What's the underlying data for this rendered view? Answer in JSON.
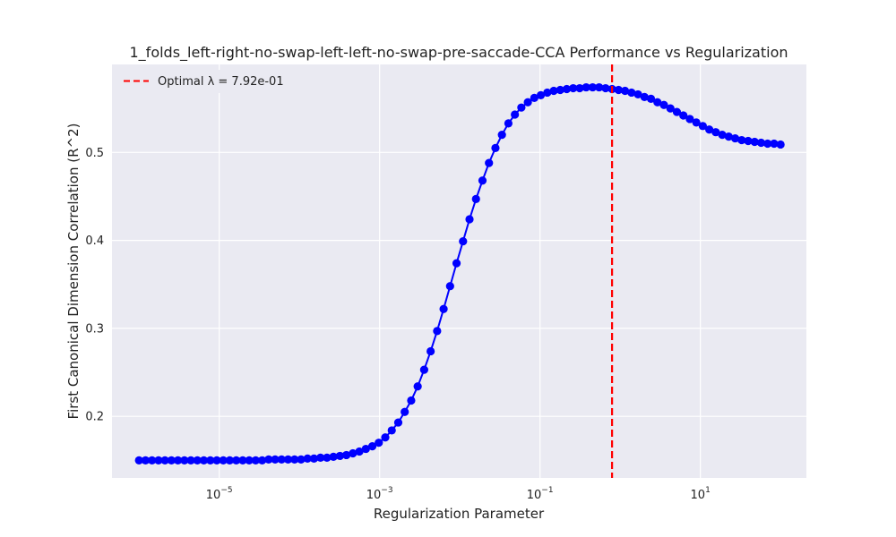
{
  "chart_data": {
    "type": "line",
    "title": "1_folds_left-right-no-swap-left-left-no-swap-pre-saccade-CCA Performance vs Regularization",
    "xlabel": "Regularization Parameter",
    "ylabel": "First Canonical Dimension Correlation (R^2)",
    "x_scale": "log",
    "xlim": [
      4.6e-07,
      210.0
    ],
    "ylim": [
      0.13,
      0.6
    ],
    "grid": true,
    "x_ticks": [
      {
        "value": 1e-05,
        "base": "10",
        "exp": "−5"
      },
      {
        "value": 0.001,
        "base": "10",
        "exp": "−3"
      },
      {
        "value": 0.1,
        "base": "10",
        "exp": "−1"
      },
      {
        "value": 10.0,
        "base": "10",
        "exp": "1"
      }
    ],
    "y_ticks": [
      0.2,
      0.3,
      0.4,
      0.5
    ],
    "colors": {
      "series": "#0000ff",
      "optimal": "#ff0000",
      "plot_bg": "#eaeaf2",
      "grid": "#ffffff"
    },
    "legend": {
      "placement": "top-left",
      "label": "Optimal λ = 7.92e-01"
    },
    "optimal_lambda": 0.792,
    "x_log10_range": [
      -6,
      2
    ],
    "num_points": 100,
    "series": [
      {
        "y": [
          0.15,
          0.15,
          0.15,
          0.15,
          0.15,
          0.15,
          0.15,
          0.15,
          0.15,
          0.15,
          0.15,
          0.15,
          0.15,
          0.15,
          0.15,
          0.15,
          0.15,
          0.15,
          0.15,
          0.15,
          0.151,
          0.151,
          0.151,
          0.151,
          0.151,
          0.151,
          0.152,
          0.152,
          0.153,
          0.153,
          0.154,
          0.155,
          0.156,
          0.158,
          0.16,
          0.163,
          0.166,
          0.17,
          0.176,
          0.184,
          0.193,
          0.205,
          0.218,
          0.234,
          0.253,
          0.274,
          0.297,
          0.322,
          0.348,
          0.374,
          0.399,
          0.424,
          0.447,
          0.468,
          0.488,
          0.505,
          0.52,
          0.533,
          0.543,
          0.551,
          0.557,
          0.562,
          0.565,
          0.568,
          0.57,
          0.571,
          0.572,
          0.573,
          0.573,
          0.574,
          0.574,
          0.574,
          0.573,
          0.572,
          0.571,
          0.57,
          0.568,
          0.566,
          0.563,
          0.561,
          0.557,
          0.554,
          0.55,
          0.546,
          0.542,
          0.538,
          0.534,
          0.53,
          0.526,
          0.523,
          0.52,
          0.518,
          0.516,
          0.514,
          0.513,
          0.512,
          0.511,
          0.51,
          0.51,
          0.509
        ]
      }
    ]
  }
}
